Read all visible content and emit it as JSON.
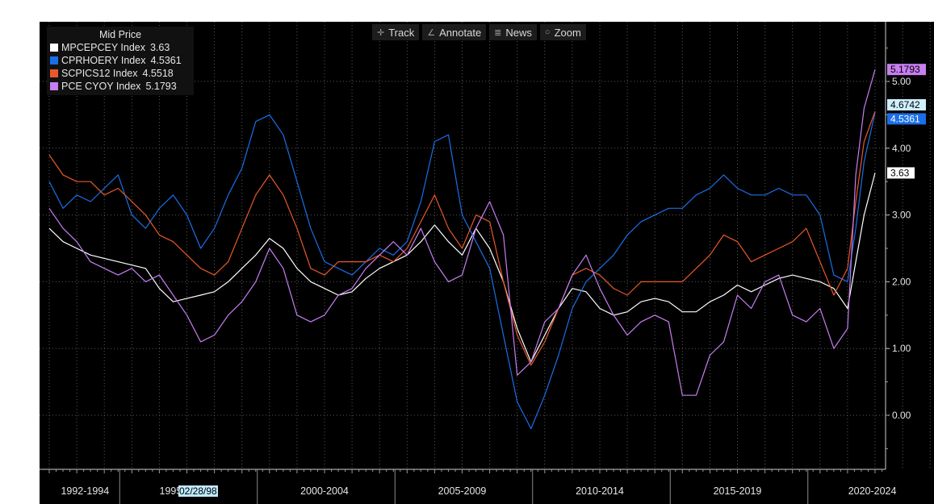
{
  "toolbar": {
    "track_label": "Track",
    "annotate_label": "Annotate",
    "news_label": "News",
    "zoom_label": "Zoom"
  },
  "legend": {
    "title": "Mid Price",
    "items": [
      {
        "name": "MPCEPCEY Index",
        "value": "3.63",
        "color": "#ffffff"
      },
      {
        "name": "CPRHOERY Index",
        "value": "4.5361",
        "color": "#1a6fe8"
      },
      {
        "name": "SCPICS12 Index",
        "value": "4.5518",
        "color": "#e8582a"
      },
      {
        "name": "PCE CYOY Index",
        "value": "5.1793",
        "color": "#c77ef0"
      }
    ]
  },
  "cursor_date": "02/28/98",
  "value_tags": [
    {
      "text": "5.1793",
      "bg": "#c77ef0",
      "fg": "#000000",
      "value": 5.1793
    },
    {
      "text": "4.6742",
      "bg": "#cfefff",
      "fg": "#000000",
      "value": 4.6742
    },
    {
      "text": "4.5361",
      "bg": "#1a6fe8",
      "fg": "#ffffff",
      "value": 4.5361
    },
    {
      "text": "3.63",
      "bg": "#ffffff",
      "fg": "#000000",
      "value": 3.63
    }
  ],
  "chart_data": {
    "type": "line",
    "ylim": [
      -0.5,
      5.9
    ],
    "xlim": [
      1991.9,
      2025.2
    ],
    "grid": true,
    "y_ticks": [
      "0.00",
      "1.00",
      "2.00",
      "3.00",
      "4.00",
      "5.00"
    ],
    "x_period_labels": [
      "1992-1994",
      "1995",
      "2000-2004",
      "2005-2009",
      "2010-2014",
      "2015-2019",
      "2020-2024"
    ],
    "series": [
      {
        "name": "MPCEPCEY Index",
        "color": "#ffffff",
        "x": [
          1992,
          1992.5,
          1993,
          1993.5,
          1994,
          1994.5,
          1995,
          1995.5,
          1996,
          1996.5,
          1997,
          1997.5,
          1998,
          1998.5,
          1999,
          1999.5,
          2000,
          2000.5,
          2001,
          2001.5,
          2002,
          2002.5,
          2003,
          2003.5,
          2004,
          2004.5,
          2005,
          2005.5,
          2006,
          2006.5,
          2007,
          2007.5,
          2008,
          2008.5,
          2009,
          2009.5,
          2010,
          2010.5,
          2011,
          2011.5,
          2012,
          2012.5,
          2013,
          2013.5,
          2014,
          2014.5,
          2015,
          2015.5,
          2016,
          2016.5,
          2017,
          2017.5,
          2018,
          2018.5,
          2019,
          2019.5,
          2020,
          2020.5,
          2021,
          2021.3,
          2021.6,
          2022
        ],
        "y": [
          2.8,
          2.6,
          2.5,
          2.4,
          2.35,
          2.3,
          2.25,
          2.2,
          1.9,
          1.7,
          1.75,
          1.8,
          1.85,
          2.0,
          2.2,
          2.4,
          2.65,
          2.5,
          2.2,
          2.0,
          1.9,
          1.8,
          1.85,
          2.05,
          2.2,
          2.3,
          2.4,
          2.6,
          2.85,
          2.6,
          2.4,
          2.8,
          2.5,
          2.0,
          1.3,
          0.8,
          1.2,
          1.6,
          1.9,
          1.85,
          1.6,
          1.5,
          1.55,
          1.7,
          1.75,
          1.7,
          1.55,
          1.55,
          1.7,
          1.8,
          1.95,
          1.85,
          1.95,
          2.05,
          2.1,
          2.05,
          2.0,
          1.9,
          1.6,
          2.3,
          3.0,
          3.63
        ]
      },
      {
        "name": "CPRHOERY Index",
        "color": "#1a6fe8",
        "x": [
          1992,
          1992.5,
          1993,
          1993.5,
          1994,
          1994.5,
          1995,
          1995.5,
          1996,
          1996.5,
          1997,
          1997.5,
          1998,
          1998.5,
          1999,
          1999.5,
          2000,
          2000.5,
          2001,
          2001.5,
          2002,
          2002.5,
          2003,
          2003.5,
          2004,
          2004.5,
          2005,
          2005.5,
          2006,
          2006.5,
          2007,
          2007.5,
          2008,
          2008.5,
          2009,
          2009.5,
          2010,
          2010.5,
          2011,
          2011.5,
          2012,
          2012.5,
          2013,
          2013.5,
          2014,
          2014.5,
          2015,
          2015.5,
          2016,
          2016.5,
          2017,
          2017.5,
          2018,
          2018.5,
          2019,
          2019.5,
          2020,
          2020.5,
          2021,
          2021.3,
          2021.6,
          2022
        ],
        "y": [
          3.5,
          3.1,
          3.3,
          3.2,
          3.4,
          3.6,
          3.0,
          2.8,
          3.1,
          3.3,
          3.0,
          2.5,
          2.8,
          3.3,
          3.7,
          4.4,
          4.5,
          4.2,
          3.5,
          2.8,
          2.3,
          2.2,
          2.1,
          2.3,
          2.5,
          2.4,
          2.6,
          3.2,
          4.1,
          4.2,
          3.0,
          2.6,
          2.2,
          1.2,
          0.2,
          -0.2,
          0.3,
          0.9,
          1.6,
          2.0,
          2.2,
          2.4,
          2.7,
          2.9,
          3.0,
          3.1,
          3.1,
          3.3,
          3.4,
          3.6,
          3.4,
          3.3,
          3.3,
          3.4,
          3.3,
          3.3,
          3.0,
          2.1,
          2.0,
          2.8,
          3.8,
          4.5361
        ]
      },
      {
        "name": "SCPICS12 Index",
        "color": "#e8582a",
        "x": [
          1992,
          1992.5,
          1993,
          1993.5,
          1994,
          1994.5,
          1995,
          1995.5,
          1996,
          1996.5,
          1997,
          1997.5,
          1998,
          1998.5,
          1999,
          1999.5,
          2000,
          2000.5,
          2001,
          2001.5,
          2002,
          2002.5,
          2003,
          2003.5,
          2004,
          2004.5,
          2005,
          2005.5,
          2006,
          2006.5,
          2007,
          2007.5,
          2008,
          2008.5,
          2009,
          2009.5,
          2010,
          2010.5,
          2011,
          2011.5,
          2012,
          2012.5,
          2013,
          2013.5,
          2014,
          2014.5,
          2015,
          2015.5,
          2016,
          2016.5,
          2017,
          2017.5,
          2018,
          2018.5,
          2019,
          2019.5,
          2020,
          2020.5,
          2021,
          2021.3,
          2021.6,
          2022
        ],
        "y": [
          3.9,
          3.6,
          3.5,
          3.5,
          3.3,
          3.4,
          3.2,
          3.0,
          2.7,
          2.6,
          2.4,
          2.2,
          2.1,
          2.3,
          2.8,
          3.3,
          3.6,
          3.3,
          2.8,
          2.2,
          2.1,
          2.3,
          2.3,
          2.3,
          2.4,
          2.3,
          2.5,
          2.9,
          3.3,
          2.8,
          2.5,
          3.0,
          2.9,
          2.0,
          1.2,
          0.75,
          1.1,
          1.6,
          2.1,
          2.2,
          2.1,
          1.9,
          1.8,
          2.0,
          2.0,
          2.0,
          2.0,
          2.2,
          2.4,
          2.7,
          2.6,
          2.3,
          2.4,
          2.5,
          2.6,
          2.8,
          2.3,
          1.8,
          2.2,
          3.2,
          4.1,
          4.5518
        ]
      },
      {
        "name": "PCE CYOY Index",
        "color": "#c77ef0",
        "x": [
          1992,
          1992.5,
          1993,
          1993.5,
          1994,
          1994.5,
          1995,
          1995.5,
          1996,
          1996.5,
          1997,
          1997.5,
          1998,
          1998.5,
          1999,
          1999.5,
          2000,
          2000.5,
          2001,
          2001.5,
          2002,
          2002.5,
          2003,
          2003.5,
          2004,
          2004.5,
          2005,
          2005.5,
          2006,
          2006.5,
          2007,
          2007.5,
          2008,
          2008.5,
          2009,
          2009.5,
          2010,
          2010.5,
          2011,
          2011.5,
          2012,
          2012.5,
          2013,
          2013.5,
          2014,
          2014.5,
          2015,
          2015.5,
          2016,
          2016.5,
          2017,
          2017.5,
          2018,
          2018.5,
          2019,
          2019.5,
          2020,
          2020.5,
          2021,
          2021.3,
          2021.6,
          2022
        ],
        "y": [
          3.1,
          2.8,
          2.6,
          2.3,
          2.2,
          2.1,
          2.2,
          2.0,
          2.1,
          1.8,
          1.5,
          1.1,
          1.2,
          1.5,
          1.7,
          2.0,
          2.5,
          2.2,
          1.5,
          1.4,
          1.5,
          1.8,
          1.9,
          2.2,
          2.4,
          2.6,
          2.4,
          2.8,
          2.3,
          2.0,
          2.1,
          2.8,
          3.2,
          2.7,
          0.6,
          0.8,
          1.4,
          1.6,
          2.1,
          2.4,
          1.9,
          1.5,
          1.2,
          1.4,
          1.5,
          1.4,
          0.3,
          0.3,
          0.9,
          1.1,
          1.8,
          1.6,
          2.0,
          2.1,
          1.5,
          1.4,
          1.6,
          1.0,
          1.3,
          3.6,
          4.6,
          5.1793
        ]
      }
    ]
  }
}
